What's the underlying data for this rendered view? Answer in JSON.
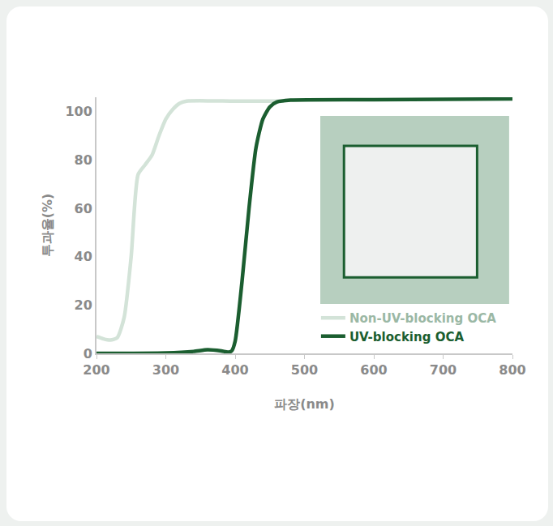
{
  "chart_data": {
    "type": "line",
    "x_label": "파장(nm)",
    "y_label": "투과율(%)",
    "xlim": [
      200,
      800
    ],
    "xticks": [
      200,
      300,
      400,
      500,
      600,
      700,
      800
    ],
    "ylim": [
      0,
      106
    ],
    "yticks": [
      0,
      20,
      40,
      60,
      80,
      100
    ],
    "grid": false,
    "legend": "bottom right",
    "series": [
      {
        "name": "Non-UV-blocking OCA",
        "color": "#d3e3d8",
        "x": [
          200,
          210,
          220,
          230,
          240,
          250,
          260,
          270,
          280,
          290,
          300,
          310,
          320,
          330,
          400,
          470
        ],
        "values": [
          7,
          6,
          5.5,
          6.5,
          15,
          40,
          74,
          78,
          82,
          90,
          97,
          101,
          103.5,
          104.4,
          104.4,
          104.4
        ]
      },
      {
        "name": "UV-blocking OCA",
        "color": "#1b5e30",
        "x": [
          200,
          300,
          340,
          360,
          380,
          390,
          395,
          400,
          410,
          420,
          430,
          440,
          450,
          460,
          480,
          600,
          800
        ],
        "values": [
          0,
          0.2,
          0.8,
          1.5,
          1,
          0.5,
          1,
          5,
          30,
          60,
          85,
          97,
          102,
          104,
          104.8,
          105,
          105.3
        ]
      }
    ]
  }
}
